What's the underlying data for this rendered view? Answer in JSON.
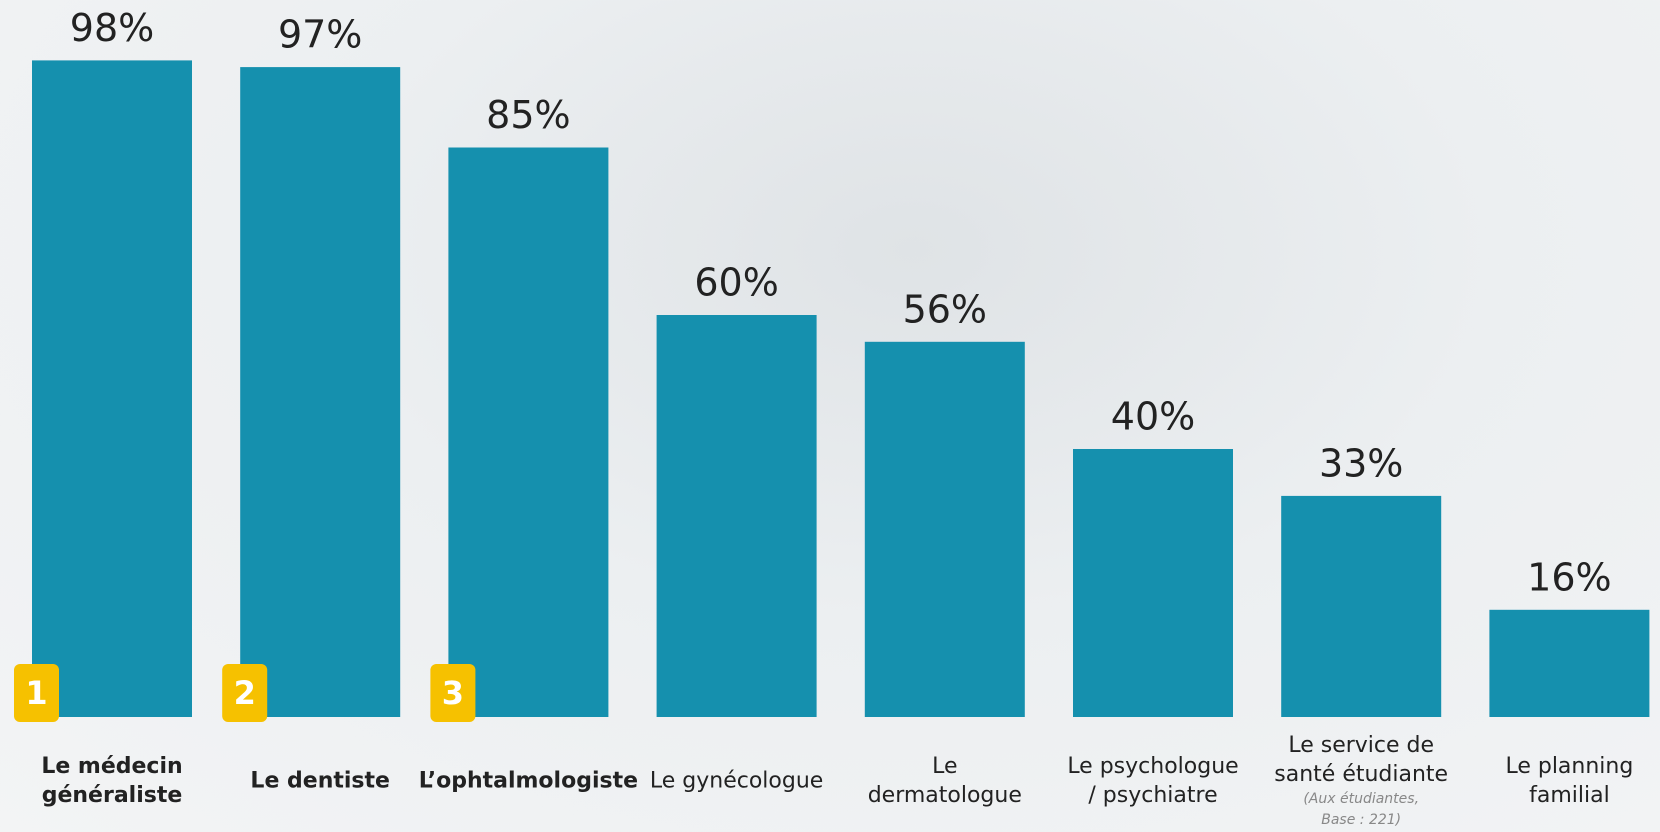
{
  "chart_data": {
    "type": "bar",
    "categories": [
      "Le médecin généraliste",
      "Le dentiste",
      "L’ophtalmologiste",
      "Le gynécologue",
      "Le dermatologue",
      "Le psychologue / psychiatre",
      "Le service de santé étudiante",
      "Le planning familial"
    ],
    "values": [
      98,
      97,
      85,
      60,
      56,
      40,
      33,
      16
    ],
    "value_labels": [
      "98%",
      "97%",
      "85%",
      "60%",
      "56%",
      "40%",
      "33%",
      "16%"
    ],
    "ranks": [
      "1",
      "2",
      "3"
    ],
    "annotations": [
      {
        "category": 6,
        "text": "(Aux étudiantes, Base : 221)"
      }
    ],
    "color": "#1590ae"
  }
}
